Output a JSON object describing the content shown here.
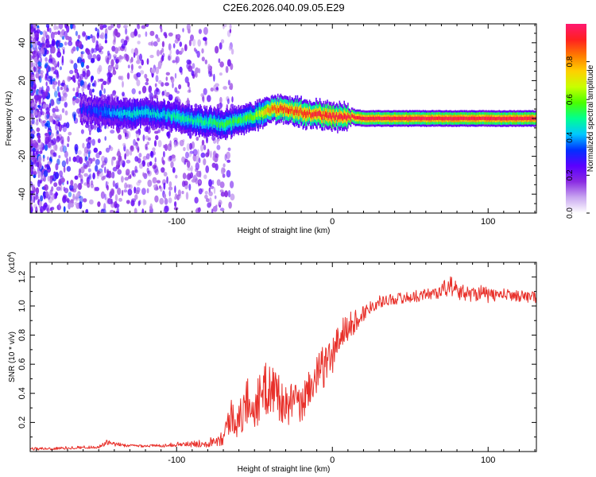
{
  "title": "C2E6.2026.040.09.05.E29",
  "colorbar": {
    "label": "Normalized spectral amplitude",
    "range": [
      0.0,
      1.0
    ],
    "ticks": [
      "0.0",
      "0.2",
      "0.4",
      "0.6",
      "0.8"
    ],
    "tick_values": [
      0.0,
      0.2,
      0.4,
      0.6,
      0.8
    ],
    "colors": [
      "#ffffff",
      "#c8a6f0",
      "#8a2be2",
      "#5a00ff",
      "#0030ff",
      "#00c8ff",
      "#00ff90",
      "#4aff00",
      "#c8ff00",
      "#ffd000",
      "#ff7a00",
      "#ff2020",
      "#ff1870"
    ]
  },
  "chart_data": [
    {
      "type": "heatmap",
      "title": "C2E6.2026.040.09.05.E29",
      "xlabel": "Height of straight line (km)",
      "ylabel": "Frequency (Hz)",
      "xlim": [
        -194,
        131
      ],
      "ylim": [
        -50,
        50
      ],
      "x_ticks": [
        -100,
        0,
        100
      ],
      "x_tick_labels": [
        "-100",
        "0",
        "100"
      ],
      "y_ticks": [
        -40,
        -20,
        0,
        20,
        40
      ],
      "y_tick_labels": [
        "-40",
        "-20",
        "0",
        "20",
        "40"
      ],
      "ridge": {
        "x": [
          -160,
          -150,
          -140,
          -130,
          -120,
          -110,
          -100,
          -90,
          -80,
          -70,
          -60,
          -50,
          -45,
          -40,
          -30,
          -20,
          -10,
          0,
          10,
          20,
          40,
          60,
          80,
          100,
          131
        ],
        "y": [
          5,
          4,
          3,
          2,
          3,
          2,
          1,
          -1,
          -2,
          -3,
          -1,
          1,
          3,
          5,
          5,
          3,
          2,
          1,
          1,
          0,
          0,
          0,
          0,
          0,
          0
        ],
        "amplitude": [
          0.3,
          0.35,
          0.4,
          0.45,
          0.45,
          0.45,
          0.5,
          0.5,
          0.5,
          0.55,
          0.55,
          0.6,
          0.7,
          0.85,
          0.9,
          0.9,
          0.92,
          0.95,
          0.95,
          0.97,
          0.97,
          0.97,
          0.97,
          0.97,
          0.97
        ]
      }
    },
    {
      "type": "line",
      "xlabel": "Height of straight line (km)",
      "ylabel": "SNR (10 * v/v)",
      "multiplier_label": "(x10",
      "multiplier_exponent": "4",
      "xlim": [
        -194,
        131
      ],
      "ylim": [
        0,
        1.3
      ],
      "x_ticks": [
        -100,
        0,
        100
      ],
      "x_tick_labels": [
        "-100",
        "0",
        "100"
      ],
      "y_ticks": [
        0.2,
        0.4,
        0.6,
        0.8,
        1.0,
        1.2
      ],
      "y_tick_labels": [
        "0.2",
        "0.4",
        "0.6",
        "0.8",
        "1.0",
        "1.2"
      ],
      "series": [
        {
          "name": "SNR",
          "color": "#e8302a",
          "x": [
            -194,
            -180,
            -160,
            -150,
            -145,
            -140,
            -130,
            -120,
            -110,
            -100,
            -90,
            -80,
            -75,
            -70,
            -65,
            -60,
            -55,
            -50,
            -45,
            -40,
            -35,
            -30,
            -25,
            -20,
            -15,
            -10,
            -5,
            0,
            5,
            10,
            15,
            20,
            25,
            30,
            40,
            50,
            60,
            70,
            75,
            80,
            90,
            95,
            100,
            110,
            120,
            131
          ],
          "y": [
            0.02,
            0.02,
            0.03,
            0.03,
            0.06,
            0.05,
            0.04,
            0.04,
            0.04,
            0.05,
            0.05,
            0.06,
            0.08,
            0.1,
            0.25,
            0.2,
            0.35,
            0.3,
            0.4,
            0.45,
            0.4,
            0.3,
            0.35,
            0.3,
            0.45,
            0.5,
            0.6,
            0.65,
            0.8,
            0.85,
            0.9,
            0.95,
            1.0,
            1.03,
            1.05,
            1.06,
            1.08,
            1.1,
            1.15,
            1.1,
            1.08,
            1.1,
            1.07,
            1.08,
            1.07,
            1.06
          ],
          "noise": [
            0.01,
            0.01,
            0.01,
            0.01,
            0.02,
            0.015,
            0.01,
            0.01,
            0.01,
            0.015,
            0.02,
            0.03,
            0.04,
            0.06,
            0.12,
            0.12,
            0.18,
            0.15,
            0.18,
            0.2,
            0.18,
            0.14,
            0.14,
            0.12,
            0.14,
            0.15,
            0.15,
            0.14,
            0.12,
            0.1,
            0.08,
            0.06,
            0.05,
            0.04,
            0.04,
            0.04,
            0.04,
            0.05,
            0.08,
            0.06,
            0.05,
            0.06,
            0.05,
            0.04,
            0.04,
            0.04
          ]
        }
      ]
    }
  ]
}
